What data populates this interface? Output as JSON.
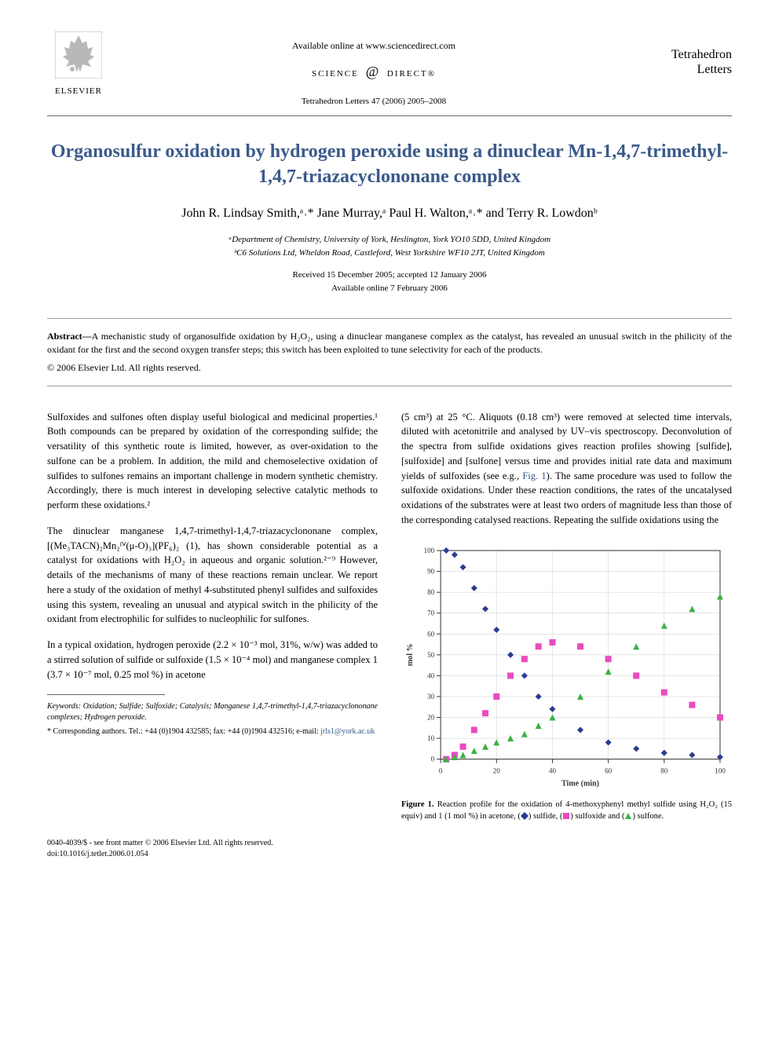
{
  "header": {
    "publisher": "ELSEVIER",
    "available_online": "Available online at www.sciencedirect.com",
    "science_direct": "SCIENCE",
    "science_direct_suffix": "DIRECT®",
    "journal_ref": "Tetrahedron Letters 47 (2006) 2005–2008",
    "journal_name_line1": "Tetrahedron",
    "journal_name_line2": "Letters"
  },
  "title": "Organosulfur oxidation by hydrogen peroxide using a dinuclear Mn-1,4,7-trimethyl-1,4,7-triazacyclononane complex",
  "authors": "John R. Lindsay Smith,ᵃ˒* Jane Murray,ᵃ Paul H. Walton,ᵃ˒* and Terry R. Lowdonᵇ",
  "affiliations": {
    "a": "ᵃDepartment of Chemistry, University of York, Heslington, York YO10 5DD, United Kingdom",
    "b": "ᵇC6 Solutions Ltd, Wheldon Road, Castleford, West Yorkshire WF10 2JT, United Kingdom"
  },
  "dates": {
    "received": "Received 15 December 2005; accepted 12 January 2006",
    "online": "Available online 7 February 2006"
  },
  "abstract": {
    "label": "Abstract—",
    "text": "A mechanistic study of organosulfide oxidation by H₂O₂, using a dinuclear manganese complex as the catalyst, has revealed an unusual switch in the philicity of the oxidant for the first and the second oxygen transfer steps; this switch has been exploited to tune selectivity for each of the products."
  },
  "copyright": "© 2006 Elsevier Ltd. All rights reserved.",
  "body": {
    "col1": {
      "p1": "Sulfoxides and sulfones often display useful biological and medicinal properties.¹ Both compounds can be prepared by oxidation of the corresponding sulfide; the versatility of this synthetic route is limited, however, as over-oxidation to the sulfone can be a problem. In addition, the mild and chemoselective oxidation of sulfides to sulfones remains an important challenge in modern synthetic chemistry. Accordingly, there is much interest in developing selective catalytic methods to perform these oxidations.²",
      "p2": "The dinuclear manganese 1,4,7-trimethyl-1,4,7-triazacyclononane complex, [(Me₃TACN)₂Mn₂ᴵⱽ(μ-O)₃](PF₆)₂ (1), has shown considerable potential as a catalyst for oxidations with H₂O₂ in aqueous and organic solution.²⁻⁹ However, details of the mechanisms of many of these reactions remain unclear. We report here a study of the oxidation of methyl 4-substituted phenyl sulfides and sulfoxides using this system, revealing an unusual and atypical switch in the philicity of the oxidant from electrophilic for sulfides to nucleophilic for sulfones.",
      "p3": "In a typical oxidation, hydrogen peroxide (2.2 × 10⁻³ mol, 31%, w/w) was added to a stirred solution of sulfide or sulfoxide (1.5 × 10⁻⁴ mol) and manganese complex 1 (3.7 × 10⁻⁷ mol, 0.25 mol %) in acetone"
    },
    "col2": {
      "p1_part1": "(5 cm³) at 25 °C. Aliquots (0.18 cm³) were removed at selected time intervals, diluted with acetonitrile and analysed by UV–vis spectroscopy. Deconvolution of the spectra from sulfide oxidations gives reaction profiles showing [sulfide], [sulfoxide] and [sulfone] versus time and provides initial rate data and maximum yields of sulfoxides (see e.g., ",
      "p1_fig_link": "Fig. 1",
      "p1_part2": "). The same procedure was used to follow the sulfoxide oxidations. Under these reaction conditions, the rates of the uncatalysed oxidations of the substrates were at least two orders of magnitude less than those of the corresponding catalysed reactions. Repeating the sulfide oxidations using the"
    }
  },
  "chart": {
    "type": "scatter",
    "xlabel": "Time (min)",
    "ylabel": "mol %",
    "xlim": [
      0,
      100
    ],
    "ylim": [
      0,
      100
    ],
    "xtick_step": 20,
    "ytick_step": 10,
    "background_color": "#ffffff",
    "grid_color": "#cccccc",
    "axis_color": "#333333",
    "label_fontsize": 10,
    "tick_fontsize": 9,
    "series": [
      {
        "name": "sulfide",
        "marker": "diamond",
        "color": "#2a3b8f",
        "size": 8,
        "data": [
          [
            2,
            100
          ],
          [
            5,
            98
          ],
          [
            8,
            92
          ],
          [
            12,
            82
          ],
          [
            16,
            72
          ],
          [
            20,
            62
          ],
          [
            25,
            50
          ],
          [
            30,
            40
          ],
          [
            35,
            30
          ],
          [
            40,
            24
          ],
          [
            50,
            14
          ],
          [
            60,
            8
          ],
          [
            70,
            5
          ],
          [
            80,
            3
          ],
          [
            90,
            2
          ],
          [
            100,
            1
          ]
        ]
      },
      {
        "name": "sulfoxide",
        "marker": "square",
        "color": "#e94bbf",
        "size": 8,
        "data": [
          [
            2,
            0
          ],
          [
            5,
            2
          ],
          [
            8,
            6
          ],
          [
            12,
            14
          ],
          [
            16,
            22
          ],
          [
            20,
            30
          ],
          [
            25,
            40
          ],
          [
            30,
            48
          ],
          [
            35,
            54
          ],
          [
            40,
            56
          ],
          [
            50,
            54
          ],
          [
            60,
            48
          ],
          [
            70,
            40
          ],
          [
            80,
            32
          ],
          [
            90,
            26
          ],
          [
            100,
            20
          ]
        ]
      },
      {
        "name": "sulfone",
        "marker": "triangle",
        "color": "#3bb143",
        "size": 8,
        "data": [
          [
            2,
            0
          ],
          [
            5,
            1
          ],
          [
            8,
            2
          ],
          [
            12,
            4
          ],
          [
            16,
            6
          ],
          [
            20,
            8
          ],
          [
            25,
            10
          ],
          [
            30,
            12
          ],
          [
            35,
            16
          ],
          [
            40,
            20
          ],
          [
            50,
            30
          ],
          [
            60,
            42
          ],
          [
            70,
            54
          ],
          [
            80,
            64
          ],
          [
            90,
            72
          ],
          [
            100,
            78
          ]
        ]
      }
    ]
  },
  "figure_caption": {
    "label": "Figure 1.",
    "text_part1": " Reaction profile for the oxidation of 4-methoxyphenyl methyl sulfide using H₂O₂ (15 equiv) and 1 (1 mol %) in acetone, (",
    "legend1_color": "#2a3b8f",
    "legend1_text": ") sulfide, (",
    "legend2_color": "#e94bbf",
    "legend2_text": ") sulfoxide and (",
    "legend3_color": "#3bb143",
    "legend3_text": ") sulfone."
  },
  "footer": {
    "keywords_label": "Keywords:",
    "keywords": " Oxidation; Sulfide; Sulfoxide; Catalysis; Manganese 1,4,7-trimethyl-1,4,7-triazacyclononane complexes; Hydrogen peroxide.",
    "corresponding": "* Corresponding authors. Tel.: +44 (0)1904 432585; fax: +44 (0)1904 432516; e-mail: ",
    "email": "jrls1@york.ac.uk",
    "issn": "0040-4039/$ - see front matter © 2006 Elsevier Ltd. All rights reserved.",
    "doi": "doi:10.1016/j.tetlet.2006.01.054"
  }
}
